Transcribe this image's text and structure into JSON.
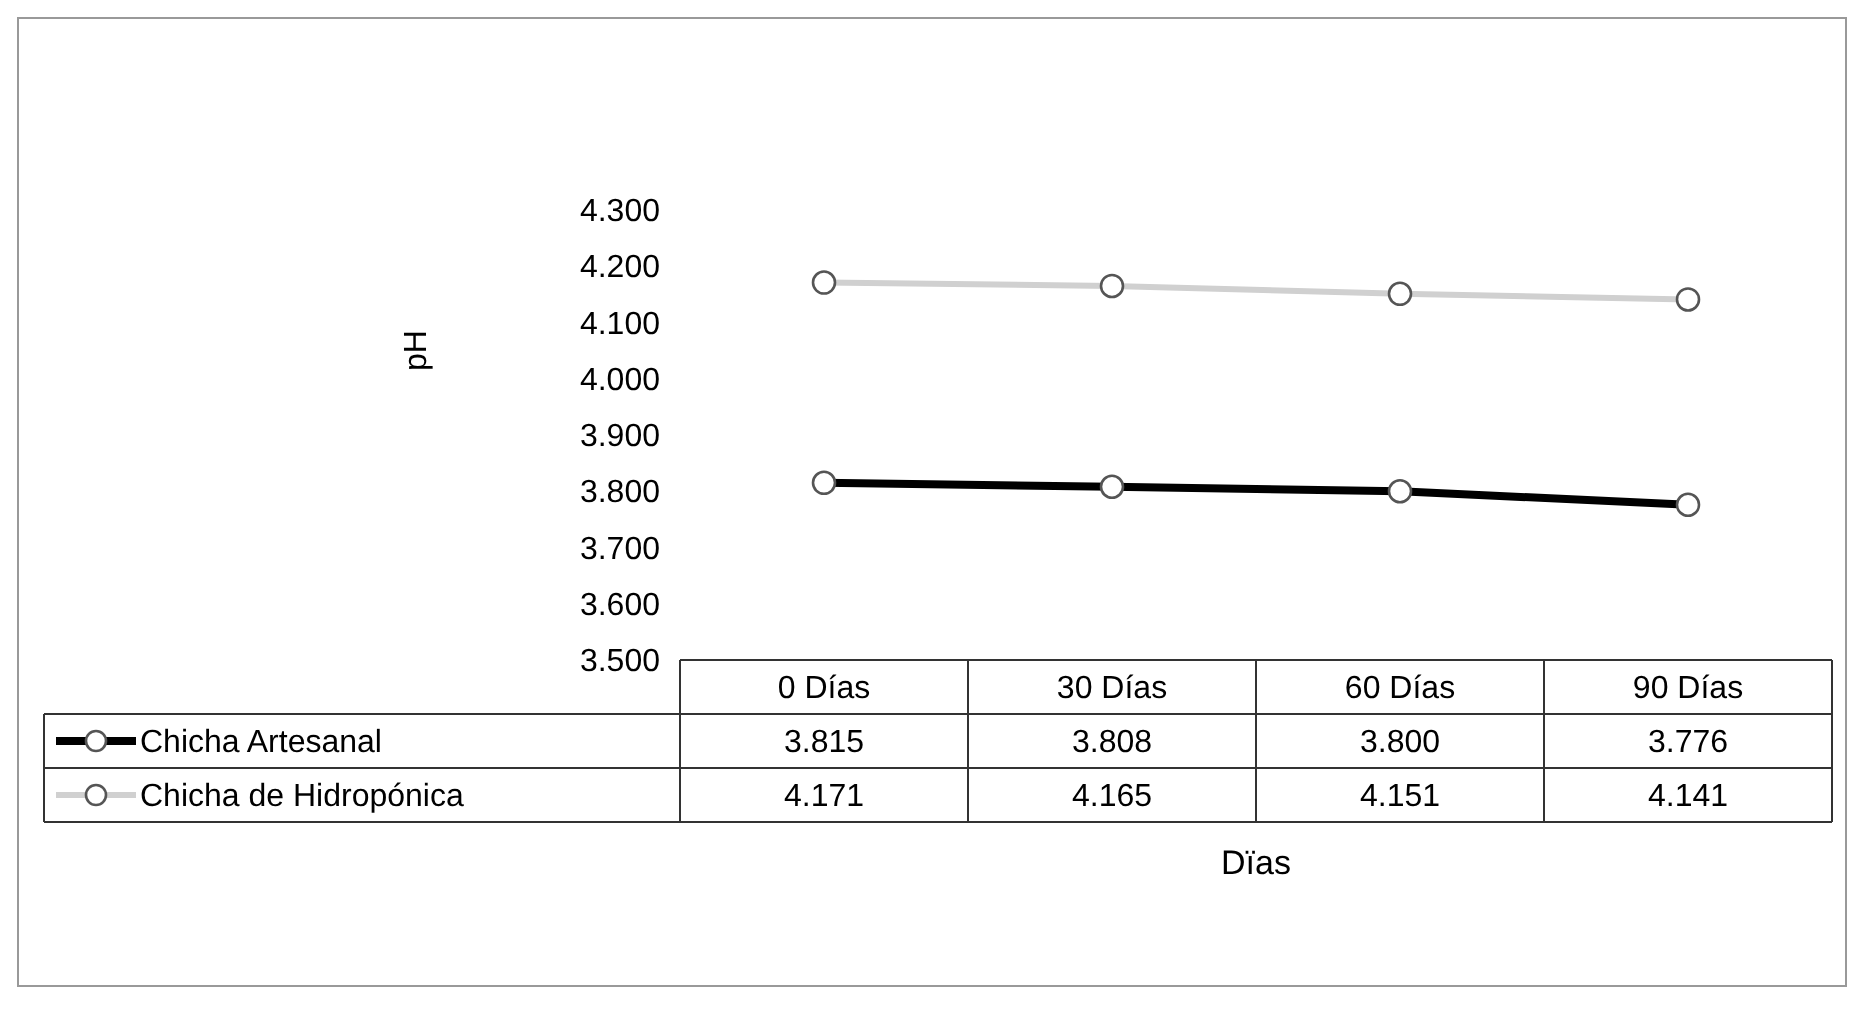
{
  "chart_data": {
    "type": "line",
    "xlabel": "Dïas",
    "ylabel": "pH",
    "categories": [
      "0 Días",
      "30 Días",
      "60 Días",
      "90 Días"
    ],
    "series": [
      {
        "name": "Chicha Artesanal",
        "color": "#000000",
        "values": [
          3.815,
          3.808,
          3.8,
          3.776
        ],
        "value_labels": [
          "3.815",
          "3.808",
          "3.800",
          "3.776"
        ]
      },
      {
        "name": "Chicha de Hidropónica",
        "color": "#d0d0d0",
        "values": [
          4.171,
          4.165,
          4.151,
          4.141
        ],
        "value_labels": [
          "4.171",
          "4.165",
          "4.151",
          "4.141"
        ]
      }
    ],
    "ylim": [
      3.5,
      4.3
    ],
    "yticks": [
      {
        "value": 3.5,
        "label": "3.500"
      },
      {
        "value": 3.6,
        "label": "3.600"
      },
      {
        "value": 3.7,
        "label": "3.700"
      },
      {
        "value": 3.8,
        "label": "3.800"
      },
      {
        "value": 3.9,
        "label": "3.900"
      },
      {
        "value": 4.0,
        "label": "4.000"
      },
      {
        "value": 4.1,
        "label": "4.100"
      },
      {
        "value": 4.2,
        "label": "4.200"
      },
      {
        "value": 4.3,
        "label": "4.300"
      }
    ],
    "marker": "circle",
    "legend": "bottom"
  }
}
